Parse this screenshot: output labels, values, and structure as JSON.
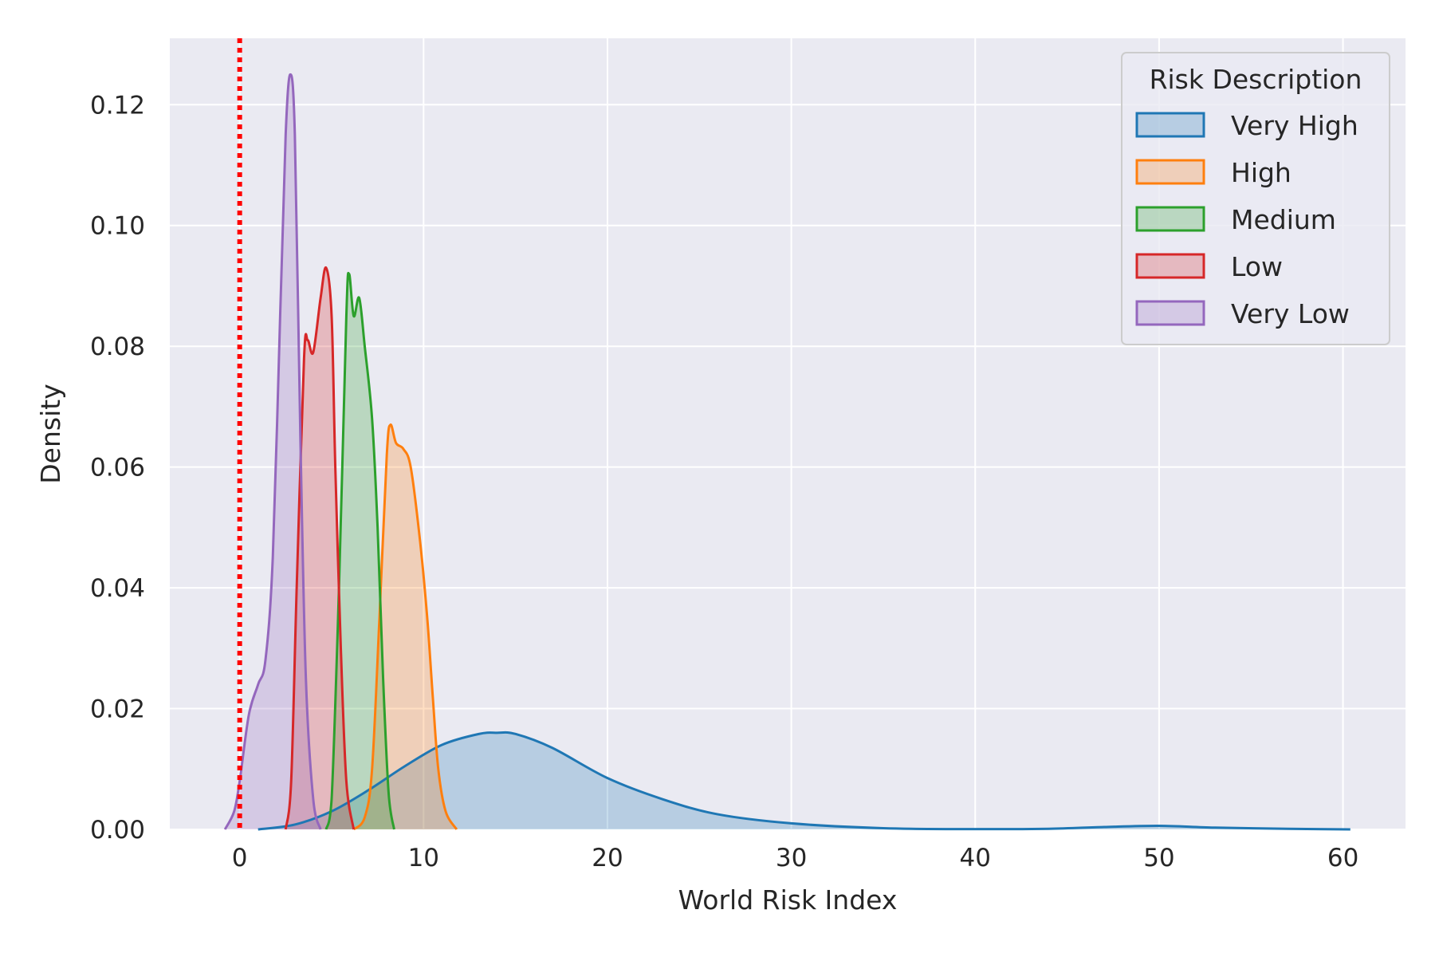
{
  "chart_data": {
    "type": "area",
    "subtype": "kde",
    "title": "",
    "xlabel": "World Risk Index",
    "ylabel": "Density",
    "xlim": [
      -3.8,
      63.4
    ],
    "ylim": [
      0,
      0.131
    ],
    "xticks": [
      0,
      10,
      20,
      30,
      40,
      50,
      60
    ],
    "yticks": [
      0.0,
      0.02,
      0.04,
      0.06,
      0.08,
      0.1,
      0.12
    ],
    "ytick_labels": [
      "0.00",
      "0.02",
      "0.04",
      "0.06",
      "0.08",
      "0.10",
      "0.12"
    ],
    "grid": true,
    "background": "#eaeaf2",
    "legend": {
      "title": "Risk Description",
      "position": "top-right"
    },
    "reference_line": {
      "x": 0,
      "color": "#ff0000",
      "style": "dotted"
    },
    "series": [
      {
        "name": "Very High",
        "color": "#1f77b4",
        "points": [
          [
            1.0,
            0
          ],
          [
            3,
            0.0008
          ],
          [
            5,
            0.003
          ],
          [
            7,
            0.0065
          ],
          [
            9,
            0.0105
          ],
          [
            11,
            0.014
          ],
          [
            13,
            0.0158
          ],
          [
            14,
            0.016
          ],
          [
            15,
            0.0158
          ],
          [
            17,
            0.0135
          ],
          [
            20,
            0.0085
          ],
          [
            23,
            0.005
          ],
          [
            26,
            0.0025
          ],
          [
            30,
            0.001
          ],
          [
            35,
            0.0002
          ],
          [
            40,
            5e-05
          ],
          [
            44,
            0.0001
          ],
          [
            47,
            0.0004
          ],
          [
            50,
            0.0006
          ],
          [
            53,
            0.0003
          ],
          [
            57,
            0.0001
          ],
          [
            60.4,
            0
          ]
        ]
      },
      {
        "name": "High",
        "color": "#ff7f0e",
        "points": [
          [
            6.2,
            0
          ],
          [
            6.8,
            0.002
          ],
          [
            7.2,
            0.01
          ],
          [
            7.6,
            0.035
          ],
          [
            8.0,
            0.062
          ],
          [
            8.2,
            0.067
          ],
          [
            8.5,
            0.064
          ],
          [
            8.9,
            0.063
          ],
          [
            9.3,
            0.06
          ],
          [
            9.8,
            0.048
          ],
          [
            10.2,
            0.035
          ],
          [
            10.5,
            0.022
          ],
          [
            10.8,
            0.01
          ],
          [
            11.2,
            0.003
          ],
          [
            11.8,
            0
          ]
        ]
      },
      {
        "name": "Medium",
        "color": "#2ca02c",
        "points": [
          [
            4.7,
            0
          ],
          [
            5.0,
            0.005
          ],
          [
            5.4,
            0.04
          ],
          [
            5.8,
            0.085
          ],
          [
            5.95,
            0.092
          ],
          [
            6.2,
            0.085
          ],
          [
            6.5,
            0.088
          ],
          [
            6.8,
            0.08
          ],
          [
            7.2,
            0.068
          ],
          [
            7.5,
            0.05
          ],
          [
            7.8,
            0.025
          ],
          [
            8.1,
            0.006
          ],
          [
            8.4,
            0
          ]
        ]
      },
      {
        "name": "Low",
        "color": "#d62728",
        "points": [
          [
            2.5,
            0
          ],
          [
            2.8,
            0.008
          ],
          [
            3.1,
            0.04
          ],
          [
            3.5,
            0.078
          ],
          [
            3.7,
            0.081
          ],
          [
            4.0,
            0.079
          ],
          [
            4.4,
            0.088
          ],
          [
            4.7,
            0.093
          ],
          [
            5.0,
            0.085
          ],
          [
            5.2,
            0.06
          ],
          [
            5.5,
            0.03
          ],
          [
            5.8,
            0.008
          ],
          [
            6.2,
            0
          ]
        ]
      },
      {
        "name": "Very Low",
        "color": "#9467bd",
        "points": [
          [
            -0.8,
            0
          ],
          [
            -0.3,
            0.003
          ],
          [
            0,
            0.008
          ],
          [
            0.5,
            0.019
          ],
          [
            1.0,
            0.024
          ],
          [
            1.4,
            0.028
          ],
          [
            1.8,
            0.045
          ],
          [
            2.2,
            0.085
          ],
          [
            2.5,
            0.115
          ],
          [
            2.75,
            0.125
          ],
          [
            3.0,
            0.115
          ],
          [
            3.3,
            0.065
          ],
          [
            3.6,
            0.025
          ],
          [
            4.0,
            0.005
          ],
          [
            4.4,
            0
          ]
        ]
      }
    ]
  }
}
